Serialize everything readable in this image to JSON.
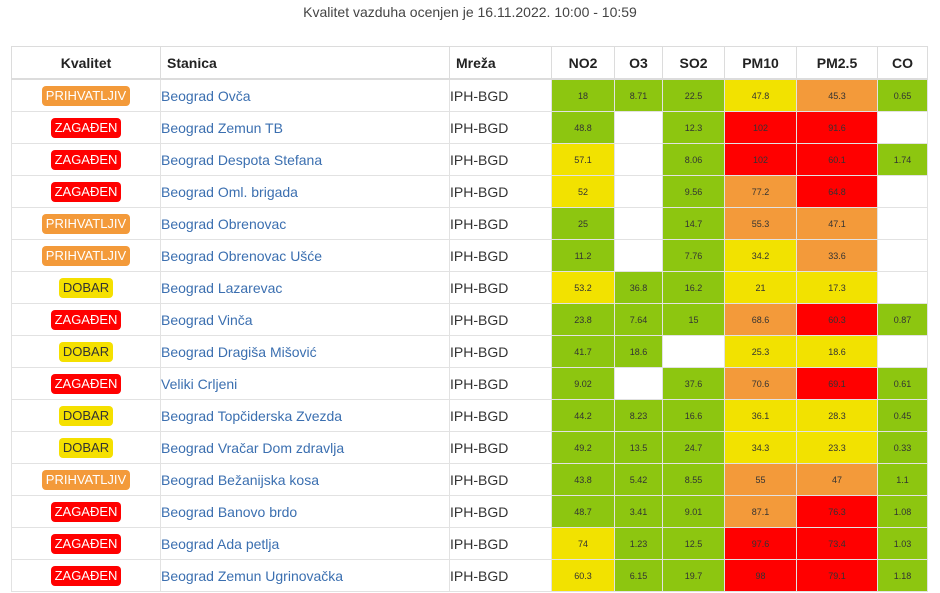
{
  "caption": "Kvalitet vazduha ocenjen je 16.11.2022. 10:00 - 10:59",
  "headers": {
    "quality": "Kvalitet",
    "station": "Stanica",
    "network": "Mreža",
    "no2": "NO2",
    "o3": "O3",
    "so2": "SO2",
    "pm10": "PM10",
    "pm25": "PM2.5",
    "co": "CO"
  },
  "level_colors": {
    "green": "#8dc610",
    "yellow": "#f2e200",
    "orange": "#f39a3a",
    "red": "#ff0000"
  },
  "rows": [
    {
      "quality": "PRIHVATLJIV",
      "qclass": "ok",
      "station": "Beograd Ovča",
      "network": "IPH-BGD",
      "no2": {
        "v": "18",
        "c": "green"
      },
      "o3": {
        "v": "8.71",
        "c": "green"
      },
      "so2": {
        "v": "22.5",
        "c": "green"
      },
      "pm10": {
        "v": "47.8",
        "c": "yellow"
      },
      "pm25": {
        "v": "45.3",
        "c": "orange"
      },
      "co": {
        "v": "0.65",
        "c": "green"
      }
    },
    {
      "quality": "ZAGAĐEN",
      "qclass": "bad",
      "station": "Beograd Zemun TB",
      "network": "IPH-BGD",
      "no2": {
        "v": "48.8",
        "c": "green"
      },
      "o3": {
        "v": "",
        "c": "none"
      },
      "so2": {
        "v": "12.3",
        "c": "green"
      },
      "pm10": {
        "v": "102",
        "c": "red"
      },
      "pm25": {
        "v": "91.6",
        "c": "red"
      },
      "co": {
        "v": "",
        "c": "none"
      }
    },
    {
      "quality": "ZAGAĐEN",
      "qclass": "bad",
      "station": "Beograd Despota Stefana",
      "network": "IPH-BGD",
      "no2": {
        "v": "57.1",
        "c": "yellow"
      },
      "o3": {
        "v": "",
        "c": "none"
      },
      "so2": {
        "v": "8.06",
        "c": "green"
      },
      "pm10": {
        "v": "102",
        "c": "red"
      },
      "pm25": {
        "v": "60.1",
        "c": "red"
      },
      "co": {
        "v": "1.74",
        "c": "green"
      }
    },
    {
      "quality": "ZAGAĐEN",
      "qclass": "bad",
      "station": "Beograd Oml. brigada",
      "network": "IPH-BGD",
      "no2": {
        "v": "52",
        "c": "yellow"
      },
      "o3": {
        "v": "",
        "c": "none"
      },
      "so2": {
        "v": "9.56",
        "c": "green"
      },
      "pm10": {
        "v": "77.2",
        "c": "orange"
      },
      "pm25": {
        "v": "64.8",
        "c": "red"
      },
      "co": {
        "v": "",
        "c": "none"
      }
    },
    {
      "quality": "PRIHVATLJIV",
      "qclass": "ok",
      "station": "Beograd Obrenovac",
      "network": "IPH-BGD",
      "no2": {
        "v": "25",
        "c": "green"
      },
      "o3": {
        "v": "",
        "c": "none"
      },
      "so2": {
        "v": "14.7",
        "c": "green"
      },
      "pm10": {
        "v": "55.3",
        "c": "orange"
      },
      "pm25": {
        "v": "47.1",
        "c": "orange"
      },
      "co": {
        "v": "",
        "c": "none"
      }
    },
    {
      "quality": "PRIHVATLJIV",
      "qclass": "ok",
      "station": "Beograd Obrenovac Ušće",
      "network": "IPH-BGD",
      "no2": {
        "v": "11.2",
        "c": "green"
      },
      "o3": {
        "v": "",
        "c": "none"
      },
      "so2": {
        "v": "7.76",
        "c": "green"
      },
      "pm10": {
        "v": "34.2",
        "c": "yellow"
      },
      "pm25": {
        "v": "33.6",
        "c": "orange"
      },
      "co": {
        "v": "",
        "c": "none"
      }
    },
    {
      "quality": "DOBAR",
      "qclass": "good",
      "station": "Beograd Lazarevac",
      "network": "IPH-BGD",
      "no2": {
        "v": "53.2",
        "c": "yellow"
      },
      "o3": {
        "v": "36.8",
        "c": "green"
      },
      "so2": {
        "v": "16.2",
        "c": "green"
      },
      "pm10": {
        "v": "21",
        "c": "yellow"
      },
      "pm25": {
        "v": "17.3",
        "c": "yellow"
      },
      "co": {
        "v": "",
        "c": "none"
      }
    },
    {
      "quality": "ZAGAĐEN",
      "qclass": "bad",
      "station": "Beograd Vinča",
      "network": "IPH-BGD",
      "no2": {
        "v": "23.8",
        "c": "green"
      },
      "o3": {
        "v": "7.64",
        "c": "green"
      },
      "so2": {
        "v": "15",
        "c": "green"
      },
      "pm10": {
        "v": "68.6",
        "c": "orange"
      },
      "pm25": {
        "v": "60.3",
        "c": "red"
      },
      "co": {
        "v": "0.87",
        "c": "green"
      }
    },
    {
      "quality": "DOBAR",
      "qclass": "good",
      "station": "Beograd Dragiša Mišović",
      "network": "IPH-BGD",
      "no2": {
        "v": "41.7",
        "c": "green"
      },
      "o3": {
        "v": "18.6",
        "c": "green"
      },
      "so2": {
        "v": "",
        "c": "none"
      },
      "pm10": {
        "v": "25.3",
        "c": "yellow"
      },
      "pm25": {
        "v": "18.6",
        "c": "yellow"
      },
      "co": {
        "v": "",
        "c": "none"
      }
    },
    {
      "quality": "ZAGAĐEN",
      "qclass": "bad",
      "station": "Veliki Crljeni",
      "network": "IPH-BGD",
      "no2": {
        "v": "9.02",
        "c": "green"
      },
      "o3": {
        "v": "",
        "c": "none"
      },
      "so2": {
        "v": "37.6",
        "c": "green"
      },
      "pm10": {
        "v": "70.6",
        "c": "orange"
      },
      "pm25": {
        "v": "69.1",
        "c": "red"
      },
      "co": {
        "v": "0.61",
        "c": "green"
      }
    },
    {
      "quality": "DOBAR",
      "qclass": "good",
      "station": "Beograd Topčiderska Zvezda",
      "network": "IPH-BGD",
      "no2": {
        "v": "44.2",
        "c": "green"
      },
      "o3": {
        "v": "8.23",
        "c": "green"
      },
      "so2": {
        "v": "16.6",
        "c": "green"
      },
      "pm10": {
        "v": "36.1",
        "c": "yellow"
      },
      "pm25": {
        "v": "28.3",
        "c": "yellow"
      },
      "co": {
        "v": "0.45",
        "c": "green"
      }
    },
    {
      "quality": "DOBAR",
      "qclass": "good",
      "station": "Beograd Vračar Dom zdravlja",
      "network": "IPH-BGD",
      "no2": {
        "v": "49.2",
        "c": "green"
      },
      "o3": {
        "v": "13.5",
        "c": "green"
      },
      "so2": {
        "v": "24.7",
        "c": "green"
      },
      "pm10": {
        "v": "34.3",
        "c": "yellow"
      },
      "pm25": {
        "v": "23.3",
        "c": "yellow"
      },
      "co": {
        "v": "0.33",
        "c": "green"
      }
    },
    {
      "quality": "PRIHVATLJIV",
      "qclass": "ok",
      "station": "Beograd Bežanijska kosa",
      "network": "IPH-BGD",
      "no2": {
        "v": "43.8",
        "c": "green"
      },
      "o3": {
        "v": "5.42",
        "c": "green"
      },
      "so2": {
        "v": "8.55",
        "c": "green"
      },
      "pm10": {
        "v": "55",
        "c": "orange"
      },
      "pm25": {
        "v": "47",
        "c": "orange"
      },
      "co": {
        "v": "1.1",
        "c": "green"
      }
    },
    {
      "quality": "ZAGAĐEN",
      "qclass": "bad",
      "station": "Beograd Banovo brdo",
      "network": "IPH-BGD",
      "no2": {
        "v": "48.7",
        "c": "green"
      },
      "o3": {
        "v": "3.41",
        "c": "green"
      },
      "so2": {
        "v": "9.01",
        "c": "green"
      },
      "pm10": {
        "v": "87.1",
        "c": "orange"
      },
      "pm25": {
        "v": "76.3",
        "c": "red"
      },
      "co": {
        "v": "1.08",
        "c": "green"
      }
    },
    {
      "quality": "ZAGAĐEN",
      "qclass": "bad",
      "station": "Beograd Ada petlja",
      "network": "IPH-BGD",
      "no2": {
        "v": "74",
        "c": "yellow"
      },
      "o3": {
        "v": "1.23",
        "c": "green"
      },
      "so2": {
        "v": "12.5",
        "c": "green"
      },
      "pm10": {
        "v": "97.6",
        "c": "red"
      },
      "pm25": {
        "v": "73.4",
        "c": "red"
      },
      "co": {
        "v": "1.03",
        "c": "green"
      }
    },
    {
      "quality": "ZAGAĐEN",
      "qclass": "bad",
      "station": "Beograd Zemun Ugrinovačka",
      "network": "IPH-BGD",
      "no2": {
        "v": "60.3",
        "c": "yellow"
      },
      "o3": {
        "v": "6.15",
        "c": "green"
      },
      "so2": {
        "v": "19.7",
        "c": "green"
      },
      "pm10": {
        "v": "98",
        "c": "red"
      },
      "pm25": {
        "v": "79.1",
        "c": "red"
      },
      "co": {
        "v": "1.18",
        "c": "green"
      }
    }
  ]
}
